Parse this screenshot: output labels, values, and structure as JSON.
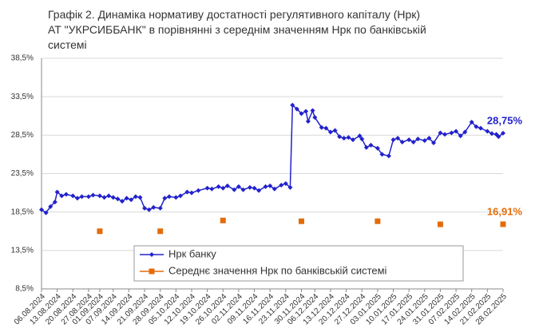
{
  "chart_data": {
    "type": "line",
    "title": [
      "Графік 2. Динаміка нормативу достатності регулятивного капіталу (Нрк)",
      "АТ \"УКРСИББАНК\" в порівнянні з середнім значенням Нрк по банківській",
      "системі"
    ],
    "ylim": [
      8.5,
      38.5
    ],
    "yticks": [
      {
        "value": 8.5,
        "label": "8,5%"
      },
      {
        "value": 13.5,
        "label": "13,5%"
      },
      {
        "value": 18.5,
        "label": "18,5%"
      },
      {
        "value": 23.5,
        "label": "23,5%"
      },
      {
        "value": 28.5,
        "label": "28,5%"
      },
      {
        "value": 33.5,
        "label": "33,5%"
      },
      {
        "value": 38.5,
        "label": "38,5%"
      }
    ],
    "grid": true,
    "xlim": [
      "06.08.2024",
      "28.02.2025"
    ],
    "xticks": [
      "06.08.2024",
      "13.08.2024",
      "20.08.2024",
      "27.08.2024",
      "01.09.2024",
      "07.09.2024",
      "14.09.2024",
      "21.09.2024",
      "28.09.2024",
      "05.10.2024",
      "12.10.2024",
      "19.10.2024",
      "26.10.2024",
      "02.11.2024",
      "09.11.2024",
      "16.11.2024",
      "23.11.2024",
      "30.11.2024",
      "06.12.2024",
      "13.12.2024",
      "20.12.2024",
      "27.12.2024",
      "03.01.2025",
      "10.01.2025",
      "17.01.2025",
      "24.01.2025",
      "31.01.2025",
      "07.02.2025",
      "14.02.2025",
      "21.02.2025",
      "28.02.2025"
    ],
    "series": [
      {
        "name": "Нрк банку",
        "color": "#2222cc",
        "marker": "diamond",
        "x": [
          "06.08.2024",
          "08.08.2024",
          "10.08.2024",
          "12.08.2024",
          "13.08.2024",
          "15.08.2024",
          "17.08.2024",
          "20.08.2024",
          "22.08.2024",
          "24.08.2024",
          "27.08.2024",
          "29.08.2024",
          "01.09.2024",
          "03.09.2024",
          "05.09.2024",
          "07.09.2024",
          "09.09.2024",
          "11.09.2024",
          "13.09.2024",
          "15.09.2024",
          "17.09.2024",
          "19.09.2024",
          "21.09.2024",
          "23.09.2024",
          "25.09.2024",
          "28.09.2024",
          "30.09.2024",
          "02.10.2024",
          "05.10.2024",
          "07.10.2024",
          "10.10.2024",
          "12.10.2024",
          "15.10.2024",
          "19.10.2024",
          "21.10.2024",
          "24.10.2024",
          "26.10.2024",
          "28.10.2024",
          "31.10.2024",
          "02.11.2024",
          "04.11.2024",
          "07.11.2024",
          "09.11.2024",
          "11.11.2024",
          "14.11.2024",
          "16.11.2024",
          "18.11.2024",
          "21.11.2024",
          "23.11.2024",
          "25.11.2024",
          "26.11.2024",
          "28.11.2024",
          "30.11.2024",
          "02.12.2024",
          "03.12.2024",
          "05.12.2024",
          "06.12.2024",
          "09.12.2024",
          "11.12.2024",
          "13.12.2024",
          "15.12.2024",
          "17.12.2024",
          "19.12.2024",
          "21.12.2024",
          "23.12.2024",
          "26.12.2024",
          "27.12.2024",
          "29.12.2024",
          "31.12.2024",
          "03.01.2025",
          "05.01.2025",
          "08.01.2025",
          "10.01.2025",
          "12.01.2025",
          "14.01.2025",
          "17.01.2025",
          "19.01.2025",
          "21.01.2025",
          "24.01.2025",
          "26.01.2025",
          "28.01.2025",
          "31.01.2025",
          "02.02.2025",
          "05.02.2025",
          "07.02.2025",
          "09.02.2025",
          "11.02.2025",
          "14.02.2025",
          "16.02.2025",
          "18.02.2025",
          "21.02.2025",
          "23.02.2025",
          "25.02.2025",
          "26.02.2025",
          "28.02.2025"
        ],
        "values": [
          18.8,
          18.4,
          19.2,
          19.8,
          21.1,
          20.6,
          20.8,
          20.6,
          20.3,
          20.5,
          20.5,
          20.7,
          20.6,
          20.4,
          20.6,
          20.4,
          20.2,
          19.9,
          20.3,
          20.1,
          20.5,
          20.4,
          19.0,
          18.8,
          19.1,
          19.0,
          20.3,
          20.5,
          20.4,
          20.6,
          21.1,
          21.0,
          21.3,
          21.6,
          21.5,
          21.8,
          21.6,
          21.9,
          21.4,
          21.8,
          21.4,
          21.7,
          21.6,
          21.3,
          21.8,
          21.9,
          21.5,
          22.0,
          22.2,
          21.7,
          32.4,
          31.9,
          31.3,
          31.6,
          30.3,
          31.7,
          30.8,
          29.5,
          29.4,
          28.9,
          29.1,
          28.3,
          28.1,
          28.2,
          27.9,
          28.4,
          28.0,
          26.9,
          27.2,
          26.8,
          26.0,
          25.8,
          27.9,
          28.1,
          27.6,
          27.9,
          27.6,
          28.0,
          27.8,
          28.1,
          27.5,
          28.8,
          28.6,
          28.8,
          29.0,
          28.4,
          28.9,
          30.2,
          29.6,
          29.4,
          29.0,
          28.7,
          28.6,
          28.3,
          28.75
        ],
        "value_labels": [
          null,
          null,
          null,
          null,
          null,
          null,
          null,
          null,
          null,
          null,
          null,
          null,
          null,
          null,
          null,
          null,
          null,
          null,
          null,
          null,
          null,
          null,
          null,
          null,
          null,
          null,
          null,
          null,
          null,
          null,
          null,
          null,
          null,
          null,
          null,
          null,
          null,
          null,
          null,
          null,
          null,
          null,
          null,
          null,
          null,
          null,
          null,
          null,
          null,
          null,
          null,
          null,
          null,
          null,
          null,
          null,
          null,
          null,
          null,
          null,
          null,
          null,
          null,
          null,
          null,
          null,
          null,
          null,
          null,
          null,
          null,
          null,
          null,
          null,
          null,
          null,
          null,
          null,
          null,
          null,
          null,
          null,
          null,
          null,
          null,
          null,
          null,
          null,
          null,
          null,
          null,
          null,
          null,
          null,
          "28,75%"
        ]
      },
      {
        "name": "Середнє значення Нрк по банківській системі",
        "color": "#e36c0a",
        "marker": "square",
        "line": false,
        "x": [
          "01.09.2024",
          "28.09.2024",
          "26.10.2024",
          "30.11.2024",
          "03.01.2025",
          "31.01.2025",
          "28.02.2025"
        ],
        "values": [
          16.0,
          16.0,
          17.4,
          17.3,
          17.3,
          16.9,
          16.91
        ],
        "value_labels": [
          null,
          null,
          null,
          null,
          null,
          null,
          "16,91%"
        ]
      }
    ]
  }
}
